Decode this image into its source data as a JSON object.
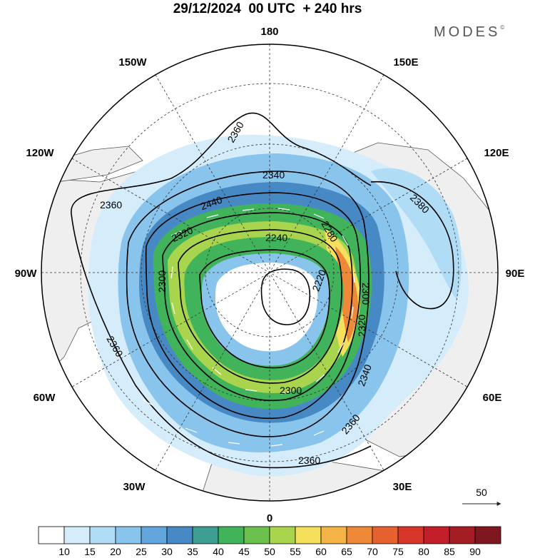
{
  "title": "29/12/2024  00 UTC  + 240 hrs",
  "brand": "MODES",
  "brand_mark": "©",
  "longitude_labels": {
    "top": "180",
    "bottom": "0",
    "left": "90W",
    "right": "90E",
    "upper_left_inner": "150W",
    "upper_left_outer": "120W",
    "upper_right_inner": "150E",
    "upper_right_outer": "120E",
    "lower_left_outer": "60W",
    "lower_left_inner": "30W",
    "lower_right_outer": "60E",
    "lower_right_inner": "30E"
  },
  "contour_labels": [
    "2360",
    "2340",
    "2440",
    "2360",
    "2380",
    "2320",
    "2240",
    "2280",
    "2300",
    "2220",
    "2300",
    "2320",
    "2360",
    "2340",
    "2360",
    "2300",
    "2360"
  ],
  "vector_reference": {
    "value": "50"
  },
  "colorbar": {
    "labels": [
      "10",
      "15",
      "20",
      "25",
      "30",
      "35",
      "40",
      "45",
      "50",
      "55",
      "60",
      "65",
      "70",
      "75",
      "80",
      "85",
      "90"
    ],
    "colors": [
      "#ffffff",
      "#d5ecfa",
      "#b0dcf5",
      "#89c4ec",
      "#62a6dd",
      "#4789c4",
      "#3f9e92",
      "#41b35a",
      "#6cc04e",
      "#a8d44e",
      "#f4e05c",
      "#f4b347",
      "#ee8a37",
      "#e5612f",
      "#d8362b",
      "#c31f2a",
      "#a41d25",
      "#7e1720"
    ]
  },
  "colors": {
    "ocean": "#ffffff",
    "land": "#f0f0f0",
    "contour": "#000000"
  }
}
